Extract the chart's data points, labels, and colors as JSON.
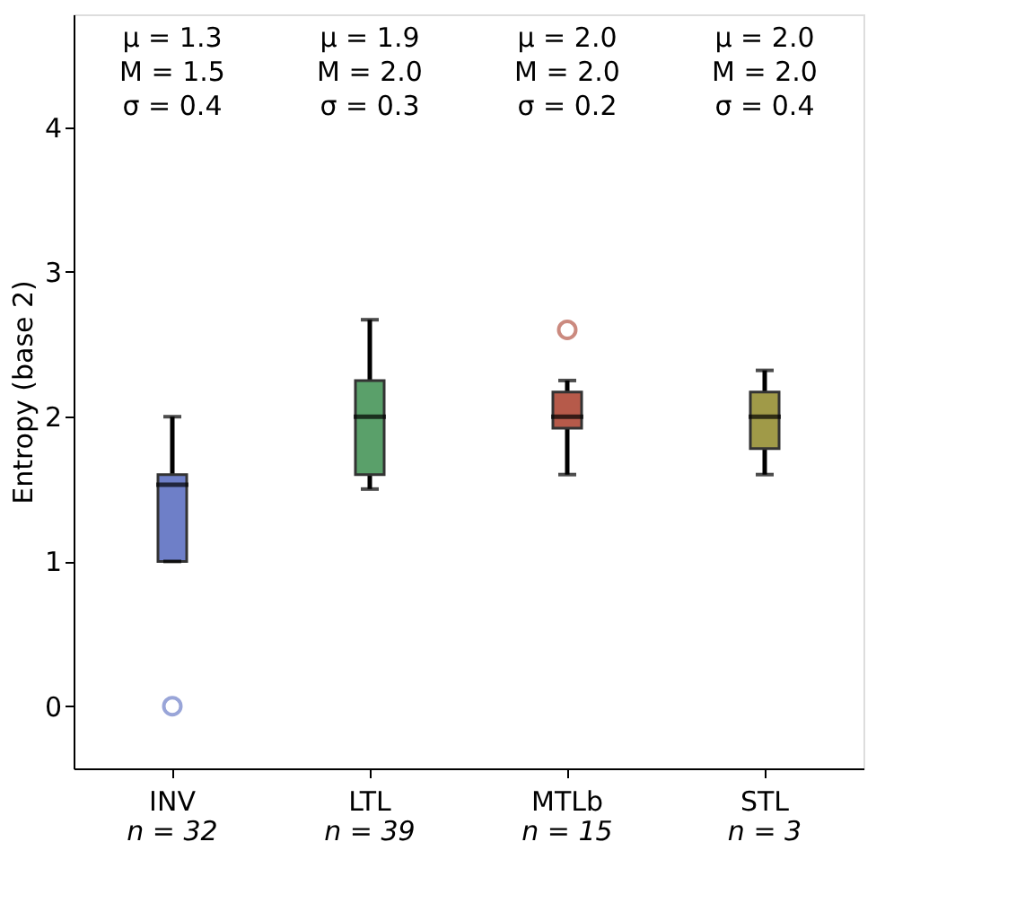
{
  "chart_data": {
    "type": "box",
    "ylabel": "Entropy (base 2)",
    "categories": [
      "INV",
      "LTL",
      "MTLb",
      "STL"
    ],
    "colors": [
      "#6e7fc8",
      "#5aa06a",
      "#b65a4a",
      "#a09a48"
    ],
    "boxes": [
      {
        "low": 1.0,
        "q1": 1.0,
        "median": 1.53,
        "q3": 1.6,
        "high": 2.0,
        "outliers": [
          0.0
        ]
      },
      {
        "low": 1.5,
        "q1": 1.6,
        "median": 2.0,
        "q3": 2.25,
        "high": 2.67
      },
      {
        "low": 1.6,
        "q1": 1.92,
        "median": 2.0,
        "q3": 2.17,
        "high": 2.25,
        "outliers": [
          2.6
        ]
      },
      {
        "low": 1.6,
        "q1": 1.78,
        "median": 2.0,
        "q3": 2.17,
        "high": 2.32
      }
    ],
    "annotations": [
      "μ = 1.3\nM = 1.5\nσ = 0.4",
      "μ = 1.9\nM = 2.0\nσ = 0.3",
      "μ = 2.0\nM = 2.0\nσ = 0.2",
      "μ = 2.0\nM = 2.0\nσ = 0.4",
      "n = 32",
      "n = 39",
      "n = 15",
      "n = 3"
    ],
    "ylim": [
      -0.43,
      4.78
    ],
    "yticks": [
      0,
      1,
      2,
      3,
      4
    ],
    "grid": false
  }
}
